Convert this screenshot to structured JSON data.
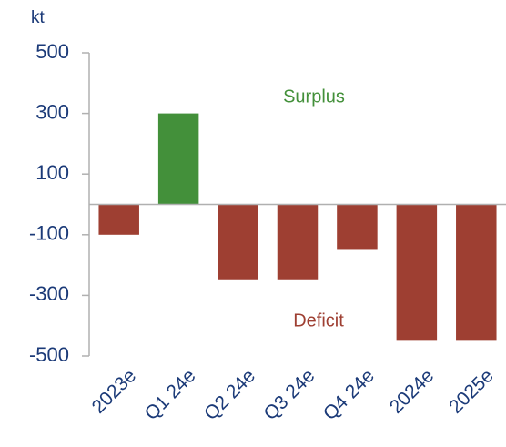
{
  "chart_data": {
    "type": "bar",
    "unit_label": "kt",
    "categories": [
      "2023e",
      "Q1 24e",
      "Q2 24e",
      "Q3 24e",
      "Q4 24e",
      "2024e",
      "2025e"
    ],
    "values": [
      -100,
      300,
      -250,
      -250,
      -150,
      -450,
      -450
    ],
    "positive_color": "#43903a",
    "negative_color": "#9e3f32",
    "annotations": [
      "Surplus",
      "Deficit"
    ],
    "ylim": [
      -500,
      500
    ],
    "yticks": [
      500,
      300,
      100,
      -100,
      -300,
      -500
    ],
    "grid": false
  }
}
